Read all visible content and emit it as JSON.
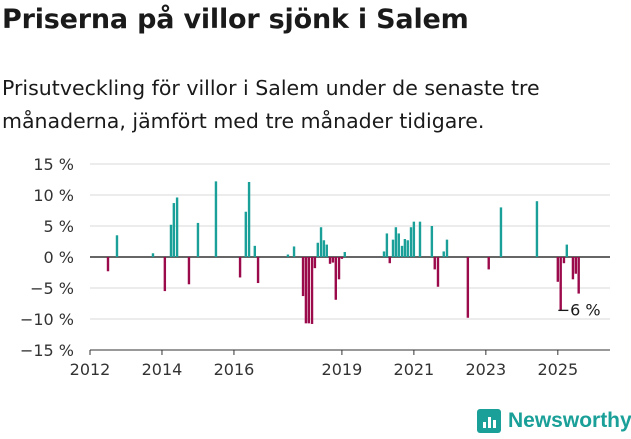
{
  "header": {
    "title": "Priserna på villor sjönk i Salem",
    "subtitle": "Prisutveckling för villor i Salem under de senaste tre månaderna, jämfört med tre månader tidigare."
  },
  "brand": {
    "name": "Newsworthy",
    "icon": "bar-chart-icon"
  },
  "colors": {
    "positive": "#1aa098",
    "negative": "#9b0a4b",
    "grid": "#d9d9d9",
    "axis": "#333333"
  },
  "chart_data": {
    "type": "bar",
    "x_axis": {
      "type": "time",
      "min": 2012.0,
      "max": 2026.45,
      "ticks": [
        "2012",
        "2014",
        "2016",
        "2019",
        "2021",
        "2023",
        "2025"
      ]
    },
    "y_axis": {
      "min": -15,
      "max": 15,
      "ticks": [
        15,
        10,
        5,
        0,
        -5,
        -10,
        -15
      ],
      "tick_labels": [
        "15 %",
        "10 %",
        "5 %",
        "0 %",
        "−5 %",
        "−10 %",
        "−15 %"
      ],
      "unit": "%"
    },
    "grid": true,
    "last_value_label": "−6 %",
    "points": [
      {
        "x": 2012.5,
        "y": -2.3
      },
      {
        "x": 2012.75,
        "y": 3.5
      },
      {
        "x": 2013.75,
        "y": 0.6
      },
      {
        "x": 2014.08,
        "y": -5.5
      },
      {
        "x": 2014.25,
        "y": 5.2
      },
      {
        "x": 2014.33,
        "y": 8.7
      },
      {
        "x": 2014.42,
        "y": 9.6
      },
      {
        "x": 2014.75,
        "y": -4.4
      },
      {
        "x": 2015.0,
        "y": 5.5
      },
      {
        "x": 2015.5,
        "y": 12.2
      },
      {
        "x": 2016.17,
        "y": -3.3
      },
      {
        "x": 2016.33,
        "y": 7.3
      },
      {
        "x": 2016.42,
        "y": 12.1
      },
      {
        "x": 2016.58,
        "y": 1.8
      },
      {
        "x": 2016.67,
        "y": -4.2
      },
      {
        "x": 2017.5,
        "y": 0.4
      },
      {
        "x": 2017.67,
        "y": 1.7
      },
      {
        "x": 2017.92,
        "y": -6.3
      },
      {
        "x": 2018.0,
        "y": -10.7
      },
      {
        "x": 2018.08,
        "y": -10.7
      },
      {
        "x": 2018.17,
        "y": -10.8
      },
      {
        "x": 2018.25,
        "y": -1.8
      },
      {
        "x": 2018.33,
        "y": 2.3
      },
      {
        "x": 2018.42,
        "y": 4.8
      },
      {
        "x": 2018.5,
        "y": 2.7
      },
      {
        "x": 2018.58,
        "y": 2.0
      },
      {
        "x": 2018.67,
        "y": -1.1
      },
      {
        "x": 2018.75,
        "y": -0.9
      },
      {
        "x": 2018.83,
        "y": -6.9
      },
      {
        "x": 2018.92,
        "y": -3.6
      },
      {
        "x": 2019.0,
        "y": -0.3
      },
      {
        "x": 2019.08,
        "y": 0.8
      },
      {
        "x": 2020.17,
        "y": 0.9
      },
      {
        "x": 2020.25,
        "y": 3.8
      },
      {
        "x": 2020.33,
        "y": -1.0
      },
      {
        "x": 2020.42,
        "y": 2.8
      },
      {
        "x": 2020.5,
        "y": 4.8
      },
      {
        "x": 2020.58,
        "y": 3.8
      },
      {
        "x": 2020.67,
        "y": 1.8
      },
      {
        "x": 2020.75,
        "y": 2.9
      },
      {
        "x": 2020.83,
        "y": 2.7
      },
      {
        "x": 2020.92,
        "y": 4.8
      },
      {
        "x": 2021.0,
        "y": 5.7
      },
      {
        "x": 2021.17,
        "y": 5.7
      },
      {
        "x": 2021.5,
        "y": 5.0
      },
      {
        "x": 2021.58,
        "y": -2.0
      },
      {
        "x": 2021.67,
        "y": -4.8
      },
      {
        "x": 2021.83,
        "y": 0.9
      },
      {
        "x": 2021.92,
        "y": 2.8
      },
      {
        "x": 2022.5,
        "y": -9.8
      },
      {
        "x": 2023.08,
        "y": -2.0
      },
      {
        "x": 2023.42,
        "y": 8.0
      },
      {
        "x": 2024.42,
        "y": 9.0
      },
      {
        "x": 2025.0,
        "y": -4.0
      },
      {
        "x": 2025.08,
        "y": -8.7
      },
      {
        "x": 2025.17,
        "y": -1.0
      },
      {
        "x": 2025.25,
        "y": 2.0
      },
      {
        "x": 2025.42,
        "y": -3.6
      },
      {
        "x": 2025.5,
        "y": -2.7
      },
      {
        "x": 2025.58,
        "y": -5.9
      }
    ]
  }
}
